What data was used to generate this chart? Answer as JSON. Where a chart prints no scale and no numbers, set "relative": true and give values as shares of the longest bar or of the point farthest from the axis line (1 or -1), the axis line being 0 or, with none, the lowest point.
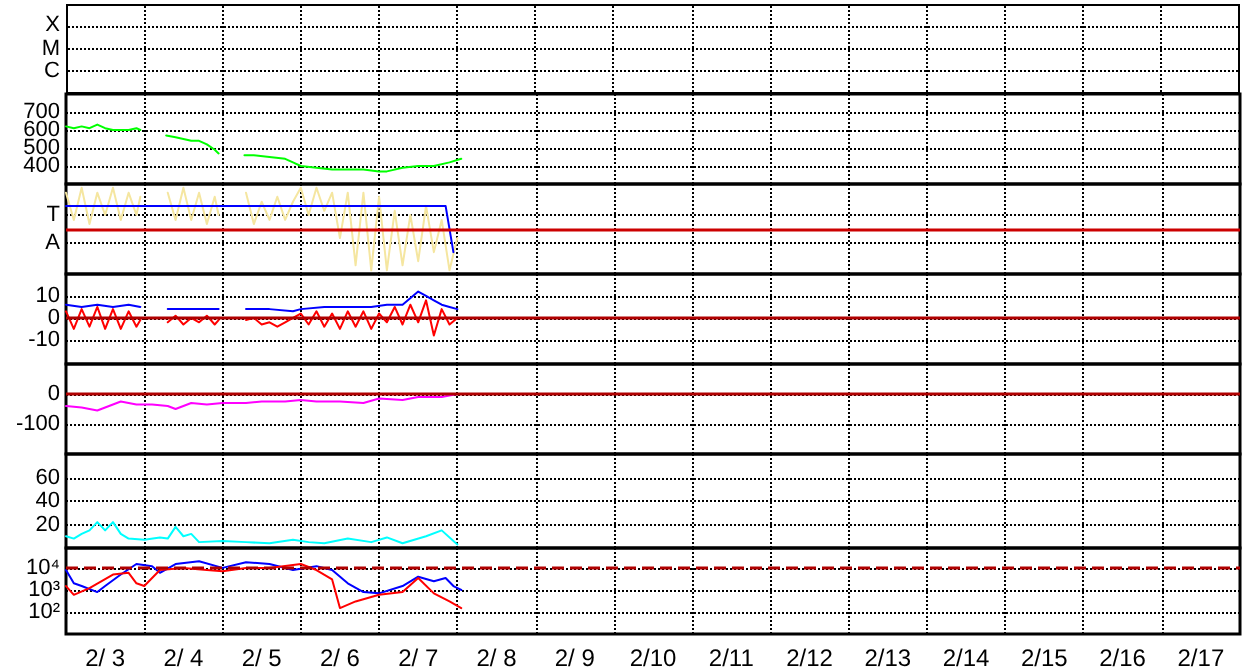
{
  "chart_data": [
    {
      "type": "other",
      "annotations": [
        "X",
        "M",
        "C"
      ]
    },
    {
      "type": "line",
      "xlim": [
        "--02-03",
        "--02-18"
      ],
      "ylim": [
        300,
        800
      ],
      "yticks": [
        400,
        500,
        600,
        700
      ],
      "xticks": [
        {
          "value": "--02-04",
          "label": null
        },
        {
          "value": "--02-05",
          "label": null
        },
        {
          "value": "--02-06",
          "label": null
        },
        {
          "value": "--02-07",
          "label": null
        },
        {
          "value": "--02-08",
          "label": null
        },
        {
          "value": "--02-09",
          "label": null
        },
        {
          "value": "--02-10",
          "label": null
        },
        {
          "value": "--02-11",
          "label": null
        },
        {
          "value": "--02-12",
          "label": null
        },
        {
          "value": "--02-13",
          "label": null
        },
        {
          "value": "--02-14",
          "label": null
        },
        {
          "value": "--02-15",
          "label": null
        },
        {
          "value": "--02-16",
          "label": null
        },
        {
          "value": "--02-17",
          "label": null
        }
      ],
      "tick_labels": "y",
      "grid": true,
      "series": [
        {
          "color": "#00ff00",
          "x": [
            "--02-03T00:00",
            "--02-03T02:24",
            "--02-03T04:48",
            "--02-03T07:12",
            "--02-03T09:36",
            "--02-03T12:00",
            "--02-03T14:24",
            "--02-03T16:48",
            "--02-03T19:12",
            "--02-03T21:36",
            "--02-03T22:48",
            "--02-04T02:24",
            "--02-04T06:43",
            "--02-04T09:36",
            "--02-04T12:00",
            "--02-04T14:24",
            "--02-04T16:48",
            "--02-04T19:12",
            "--02-04T21:36",
            "--02-04T22:48",
            "--02-05T02:24",
            "--02-05T06:43",
            "--02-05T09:36",
            "--02-05T14:24",
            "--02-05T19:12",
            "--02-05T21:36",
            "--02-06T00:00",
            "--02-06T04:48",
            "--02-06T09:36",
            "--02-06T14:24",
            "--02-06T19:12",
            "--02-07T00:00",
            "--02-07T02:24",
            "--02-07T07:12",
            "--02-07T12:00",
            "--02-07T16:48",
            "--02-07T21:36",
            "--02-08T01:12"
          ],
          "values": [
            620,
            610,
            620,
            610,
            630,
            610,
            600,
            600,
            600,
            610,
            600,
            null,
            570,
            560,
            550,
            540,
            540,
            520,
            490,
            470,
            null,
            460,
            460,
            450,
            440,
            420,
            400,
            390,
            380,
            380,
            380,
            370,
            370,
            390,
            400,
            400,
            420,
            440
          ]
        }
      ]
    },
    {
      "type": "line",
      "relative": true,
      "annotations": [
        "T",
        "A"
      ],
      "xlim": [
        "--02-03",
        "--02-18"
      ],
      "xticks": [
        {
          "value": "--02-04",
          "label": null
        },
        {
          "value": "--02-05",
          "label": null
        },
        {
          "value": "--02-06",
          "label": null
        },
        {
          "value": "--02-07",
          "label": null
        },
        {
          "value": "--02-08",
          "label": null
        },
        {
          "value": "--02-09",
          "label": null
        },
        {
          "value": "--02-10",
          "label": null
        },
        {
          "value": "--02-11",
          "label": null
        },
        {
          "value": "--02-12",
          "label": null
        },
        {
          "value": "--02-13",
          "label": null
        },
        {
          "value": "--02-14",
          "label": null
        },
        {
          "value": "--02-15",
          "label": null
        },
        {
          "value": "--02-16",
          "label": null
        },
        {
          "value": "--02-17",
          "label": null
        }
      ],
      "tick_labels": "y",
      "grid": true,
      "ref_lines": [
        {
          "axis": "y",
          "value": 0.5,
          "color": "#cc0000"
        }
      ],
      "series": [
        {
          "color": "#f5e6a0",
          "x": [
            "--02-03T00:00",
            "--02-03T02:24",
            "--02-03T04:48",
            "--02-03T07:12",
            "--02-03T09:36",
            "--02-03T12:00",
            "--02-03T14:24",
            "--02-03T16:48",
            "--02-03T19:12",
            "--02-03T21:36",
            "--02-03T22:48",
            "--02-04T02:24",
            "--02-04T07:12",
            "--02-04T09:36",
            "--02-04T12:00",
            "--02-04T14:24",
            "--02-04T16:48",
            "--02-04T19:12",
            "--02-04T21:36",
            "--02-04T22:48",
            "--02-05T02:24",
            "--02-05T07:12",
            "--02-05T09:36",
            "--02-05T12:00",
            "--02-05T14:24",
            "--02-05T16:48",
            "--02-05T19:12",
            "--02-05T21:36",
            "--02-06T00:00",
            "--02-06T02:24",
            "--02-06T04:48",
            "--02-06T07:12",
            "--02-06T09:36",
            "--02-06T12:00",
            "--02-06T14:24",
            "--02-06T16:48",
            "--02-06T19:12",
            "--02-06T21:36",
            "--02-07T00:00",
            "--02-07T02:24",
            "--02-07T04:48",
            "--02-07T07:12",
            "--02-07T09:36",
            "--02-07T12:00",
            "--02-07T14:24",
            "--02-07T16:48",
            "--02-07T19:12",
            "--02-07T21:36",
            "--02-08T00:00"
          ],
          "values": [
            0.94,
            0.61,
            1,
            0.56,
            0.94,
            0.67,
            1,
            0.61,
            0.94,
            0.67,
            0.89,
            null,
            0.94,
            0.61,
            1,
            0.61,
            0.94,
            0.56,
            0.89,
            0.67,
            null,
            0.94,
            0.56,
            0.83,
            0.61,
            0.89,
            0.61,
            0.83,
            1,
            0.67,
            1,
            0.72,
            0.94,
            0.39,
            0.94,
            0.06,
            0.94,
            0,
            0.89,
            0,
            0.72,
            0.06,
            0.67,
            0.11,
            0.78,
            0.22,
            0.61,
            0,
            0.39
          ]
        },
        {
          "color": "#0000ff",
          "x": [
            "--02-03T00:00",
            "--02-07T20:24",
            "--02-07T22:48"
          ],
          "values": [
            0.78,
            0.78,
            0.22
          ]
        }
      ]
    },
    {
      "type": "line",
      "xlim": [
        "--02-03",
        "--02-18"
      ],
      "ylim": [
        -21,
        20
      ],
      "yticks": [
        10,
        0,
        -10
      ],
      "xticks": [
        {
          "value": "--02-04",
          "label": null
        },
        {
          "value": "--02-05",
          "label": null
        },
        {
          "value": "--02-06",
          "label": null
        },
        {
          "value": "--02-07",
          "label": null
        },
        {
          "value": "--02-08",
          "label": null
        },
        {
          "value": "--02-09",
          "label": null
        },
        {
          "value": "--02-10",
          "label": null
        },
        {
          "value": "--02-11",
          "label": null
        },
        {
          "value": "--02-12",
          "label": null
        },
        {
          "value": "--02-13",
          "label": null
        },
        {
          "value": "--02-14",
          "label": null
        },
        {
          "value": "--02-15",
          "label": null
        },
        {
          "value": "--02-16",
          "label": null
        },
        {
          "value": "--02-17",
          "label": null
        }
      ],
      "tick_labels": "y",
      "grid": true,
      "ref_lines": [
        {
          "axis": "y",
          "value": 0,
          "color": "#b00000"
        }
      ],
      "series": [
        {
          "color": "#0000ff",
          "x": [
            "--02-03T00:00",
            "--02-03T04:48",
            "--02-03T09:36",
            "--02-03T14:24",
            "--02-03T19:12",
            "--02-03T22:48",
            "--02-04T02:24",
            "--02-04T07:12",
            "--02-04T14:24",
            "--02-04T22:48",
            "--02-05T02:24",
            "--02-05T07:12",
            "--02-05T14:24",
            "--02-05T21:36",
            "--02-06T00:00",
            "--02-06T07:12",
            "--02-06T14:24",
            "--02-06T21:36",
            "--02-07T02:24",
            "--02-07T07:12",
            "--02-07T12:00",
            "--02-07T14:24",
            "--02-07T16:48",
            "--02-07T19:12",
            "--02-07T21:36",
            "--02-08T00:00"
          ],
          "values": [
            6,
            5,
            6,
            5,
            6,
            5,
            null,
            4,
            4,
            4,
            null,
            4,
            4,
            3,
            4,
            5,
            5,
            5,
            6,
            6,
            12,
            10,
            8,
            6,
            5,
            4
          ]
        },
        {
          "color": "#ff0000",
          "x": [
            "--02-03T00:00",
            "--02-03T02:24",
            "--02-03T04:48",
            "--02-03T07:12",
            "--02-03T09:36",
            "--02-03T12:00",
            "--02-03T14:24",
            "--02-03T16:48",
            "--02-03T19:12",
            "--02-03T21:36",
            "--02-03T22:48",
            "--02-04T02:24",
            "--02-04T07:12",
            "--02-04T09:36",
            "--02-04T12:00",
            "--02-04T14:24",
            "--02-04T16:48",
            "--02-04T19:12",
            "--02-04T21:36",
            "--02-04T22:48",
            "--02-05T02:24",
            "--02-05T07:12",
            "--02-05T09:36",
            "--02-05T12:00",
            "--02-05T14:24",
            "--02-05T16:48",
            "--02-05T19:12",
            "--02-05T21:36",
            "--02-06T00:00",
            "--02-06T02:24",
            "--02-06T04:48",
            "--02-06T07:12",
            "--02-06T09:36",
            "--02-06T12:00",
            "--02-06T14:24",
            "--02-06T16:48",
            "--02-06T19:12",
            "--02-06T21:36",
            "--02-07T00:00",
            "--02-07T02:24",
            "--02-07T04:48",
            "--02-07T07:12",
            "--02-07T09:36",
            "--02-07T12:00",
            "--02-07T14:24",
            "--02-07T16:48",
            "--02-07T19:12",
            "--02-07T21:36",
            "--02-08T00:00"
          ],
          "values": [
            3,
            -5,
            4,
            -4,
            5,
            -5,
            4,
            -5,
            3,
            -4,
            -1,
            null,
            -2,
            1,
            -3,
            0,
            -2,
            1,
            -3,
            -1,
            null,
            -1,
            0,
            -3,
            -2,
            -4,
            -2,
            0,
            2,
            -3,
            3,
            -4,
            2,
            -5,
            3,
            -4,
            3,
            -5,
            2,
            -2,
            5,
            -3,
            6,
            -2,
            8,
            -8,
            4,
            -3,
            0
          ]
        }
      ]
    },
    {
      "type": "line",
      "xlim": [
        "--02-03",
        "--02-18"
      ],
      "ylim": [
        -200,
        100
      ],
      "yticks": [
        0,
        -100
      ],
      "xticks": [
        {
          "value": "--02-04",
          "label": null
        },
        {
          "value": "--02-05",
          "label": null
        },
        {
          "value": "--02-06",
          "label": null
        },
        {
          "value": "--02-07",
          "label": null
        },
        {
          "value": "--02-08",
          "label": null
        },
        {
          "value": "--02-09",
          "label": null
        },
        {
          "value": "--02-10",
          "label": null
        },
        {
          "value": "--02-11",
          "label": null
        },
        {
          "value": "--02-12",
          "label": null
        },
        {
          "value": "--02-13",
          "label": null
        },
        {
          "value": "--02-14",
          "label": null
        },
        {
          "value": "--02-15",
          "label": null
        },
        {
          "value": "--02-16",
          "label": null
        },
        {
          "value": "--02-17",
          "label": null
        }
      ],
      "tick_labels": "y",
      "grid": true,
      "ref_lines": [
        {
          "axis": "y",
          "value": 0,
          "color": "#b00000"
        }
      ],
      "series": [
        {
          "color": "#ff00ff",
          "x": [
            "--02-03T00:00",
            "--02-03T04:48",
            "--02-03T09:36",
            "--02-03T13:12",
            "--02-03T16:48",
            "--02-03T21:36",
            "--02-04T02:24",
            "--02-04T07:12",
            "--02-04T09:36",
            "--02-04T14:24",
            "--02-04T19:12",
            "--02-05T00:00",
            "--02-05T07:12",
            "--02-05T12:00",
            "--02-05T19:12",
            "--02-06T00:00",
            "--02-06T04:48",
            "--02-06T12:00",
            "--02-06T19:12",
            "--02-07T00:00",
            "--02-07T07:12",
            "--02-07T12:00",
            "--02-07T19:12",
            "--02-08T00:00"
          ],
          "values": [
            -40,
            -45,
            -55,
            -40,
            -25,
            -35,
            -35,
            -40,
            -50,
            -30,
            -35,
            -30,
            -30,
            -25,
            -25,
            -20,
            -25,
            -25,
            -30,
            -15,
            -20,
            -10,
            -10,
            0
          ]
        }
      ]
    },
    {
      "type": "line",
      "xlim": [
        "--02-03",
        "--02-18"
      ],
      "ylim": [
        0,
        80
      ],
      "yticks": [
        20,
        40,
        60
      ],
      "xticks": [
        {
          "value": "--02-04",
          "label": null
        },
        {
          "value": "--02-05",
          "label": null
        },
        {
          "value": "--02-06",
          "label": null
        },
        {
          "value": "--02-07",
          "label": null
        },
        {
          "value": "--02-08",
          "label": null
        },
        {
          "value": "--02-09",
          "label": null
        },
        {
          "value": "--02-10",
          "label": null
        },
        {
          "value": "--02-11",
          "label": null
        },
        {
          "value": "--02-12",
          "label": null
        },
        {
          "value": "--02-13",
          "label": null
        },
        {
          "value": "--02-14",
          "label": null
        },
        {
          "value": "--02-15",
          "label": null
        },
        {
          "value": "--02-16",
          "label": null
        },
        {
          "value": "--02-17",
          "label": null
        }
      ],
      "tick_labels": "y",
      "grid": true,
      "series": [
        {
          "color": "#00ffff",
          "x": [
            "--02-03T00:00",
            "--02-03T02:24",
            "--02-03T04:48",
            "--02-03T07:12",
            "--02-03T09:36",
            "--02-03T12:00",
            "--02-03T14:24",
            "--02-03T16:48",
            "--02-03T19:12",
            "--02-04T00:00",
            "--02-04T04:48",
            "--02-04T07:12",
            "--02-04T09:36",
            "--02-04T12:00",
            "--02-04T14:24",
            "--02-04T16:48",
            "--02-05T00:00",
            "--02-05T07:12",
            "--02-05T14:24",
            "--02-05T21:36",
            "--02-06T02:24",
            "--02-06T07:12",
            "--02-06T14:24",
            "--02-06T21:36",
            "--02-07T02:24",
            "--02-07T07:12",
            "--02-07T14:24",
            "--02-07T19:12",
            "--02-08T00:00"
          ],
          "values": [
            10,
            8,
            12,
            15,
            22,
            15,
            22,
            12,
            8,
            7,
            9,
            8,
            18,
            10,
            12,
            5,
            6,
            5,
            4,
            7,
            5,
            4,
            8,
            5,
            9,
            4,
            10,
            15,
            3
          ]
        }
      ]
    },
    {
      "type": "line",
      "log": "y",
      "xlim": [
        "--02-03",
        "--02-18"
      ],
      "ylim": [
        10,
        80000
      ],
      "yticks": [
        {
          "value": 10000,
          "label": "10⁴"
        },
        {
          "value": 1000,
          "label": "10³"
        },
        {
          "value": 100,
          "label": "10²"
        }
      ],
      "xticks": [
        {
          "value": "--02-03T12:00",
          "label": "2/ 3"
        },
        {
          "value": "--02-04",
          "label": null
        },
        {
          "value": "--02-04T12:00",
          "label": "2/ 4"
        },
        {
          "value": "--02-05",
          "label": null
        },
        {
          "value": "--02-05T12:00",
          "label": "2/ 5"
        },
        {
          "value": "--02-06",
          "label": null
        },
        {
          "value": "--02-06T12:00",
          "label": "2/ 6"
        },
        {
          "value": "--02-07",
          "label": null
        },
        {
          "value": "--02-07T12:00",
          "label": "2/ 7"
        },
        {
          "value": "--02-08",
          "label": null
        },
        {
          "value": "--02-08T12:00",
          "label": "2/ 8"
        },
        {
          "value": "--02-09",
          "label": null
        },
        {
          "value": "--02-09T12:00",
          "label": "2/ 9"
        },
        {
          "value": "--02-10",
          "label": null
        },
        {
          "value": "--02-10T12:00",
          "label": "2/10"
        },
        {
          "value": "--02-11",
          "label": null
        },
        {
          "value": "--02-11T12:00",
          "label": "2/11"
        },
        {
          "value": "--02-12",
          "label": null
        },
        {
          "value": "--02-12T12:00",
          "label": "2/12"
        },
        {
          "value": "--02-13",
          "label": null
        },
        {
          "value": "--02-13T12:00",
          "label": "2/13"
        },
        {
          "value": "--02-14",
          "label": null
        },
        {
          "value": "--02-14T12:00",
          "label": "2/14"
        },
        {
          "value": "--02-15",
          "label": null
        },
        {
          "value": "--02-15T12:00",
          "label": "2/15"
        },
        {
          "value": "--02-16",
          "label": null
        },
        {
          "value": "--02-16T12:00",
          "label": "2/16"
        },
        {
          "value": "--02-17",
          "label": null
        },
        {
          "value": "--02-17T12:00",
          "label": "2/17"
        }
      ],
      "grid": true,
      "ref_lines": [
        {
          "axis": "y",
          "value": 10000,
          "color": "#b00000",
          "line_style": "dashed"
        }
      ],
      "series": [
        {
          "color": "#0000ff",
          "x": [
            "--02-03T00:00",
            "--02-03T02:24",
            "--02-03T04:48",
            "--02-03T09:36",
            "--02-03T12:00",
            "--02-03T16:48",
            "--02-03T21:36",
            "--02-04T02:24",
            "--02-04T04:48",
            "--02-04T09:36",
            "--02-04T16:48",
            "--02-05T00:00",
            "--02-05T07:12",
            "--02-05T14:24",
            "--02-05T21:36",
            "--02-06T04:48",
            "--02-06T09:36",
            "--02-06T14:24",
            "--02-06T19:12",
            "--02-07T00:00",
            "--02-07T07:12",
            "--02-07T12:00",
            "--02-07T16:48",
            "--02-07T20:24",
            "--02-07T22:48",
            "--02-08T01:12"
          ],
          "values": [
            8000,
            2000,
            1500,
            800,
            1500,
            5000,
            15000,
            12000,
            6000,
            15000,
            20000,
            10000,
            18000,
            15000,
            8000,
            12000,
            8000,
            2000,
            800,
            700,
            1500,
            4000,
            2500,
            3500,
            1500,
            1000
          ]
        },
        {
          "color": "#ff0000",
          "x": [
            "--02-03T00:00",
            "--02-03T02:24",
            "--02-03T07:12",
            "--02-03T14:24",
            "--02-03T19:12",
            "--02-03T21:36",
            "--02-04T00:00",
            "--02-04T04:48",
            "--02-04T12:00",
            "--02-04T19:12",
            "--02-05T00:00",
            "--02-05T07:12",
            "--02-05T14:24",
            "--02-06T00:00",
            "--02-06T04:48",
            "--02-06T09:36",
            "--02-06T12:00",
            "--02-06T16:48",
            "--02-07T00:00",
            "--02-07T07:12",
            "--02-07T12:00",
            "--02-07T16:48",
            "--02-07T21:36",
            "--02-08T01:12"
          ],
          "values": [
            1500,
            600,
            1200,
            5000,
            6000,
            2000,
            1500,
            8000,
            10000,
            8000,
            7000,
            10000,
            10000,
            15000,
            8000,
            3000,
            150,
            300,
            600,
            800,
            3500,
            700,
            300,
            150
          ]
        }
      ]
    }
  ]
}
